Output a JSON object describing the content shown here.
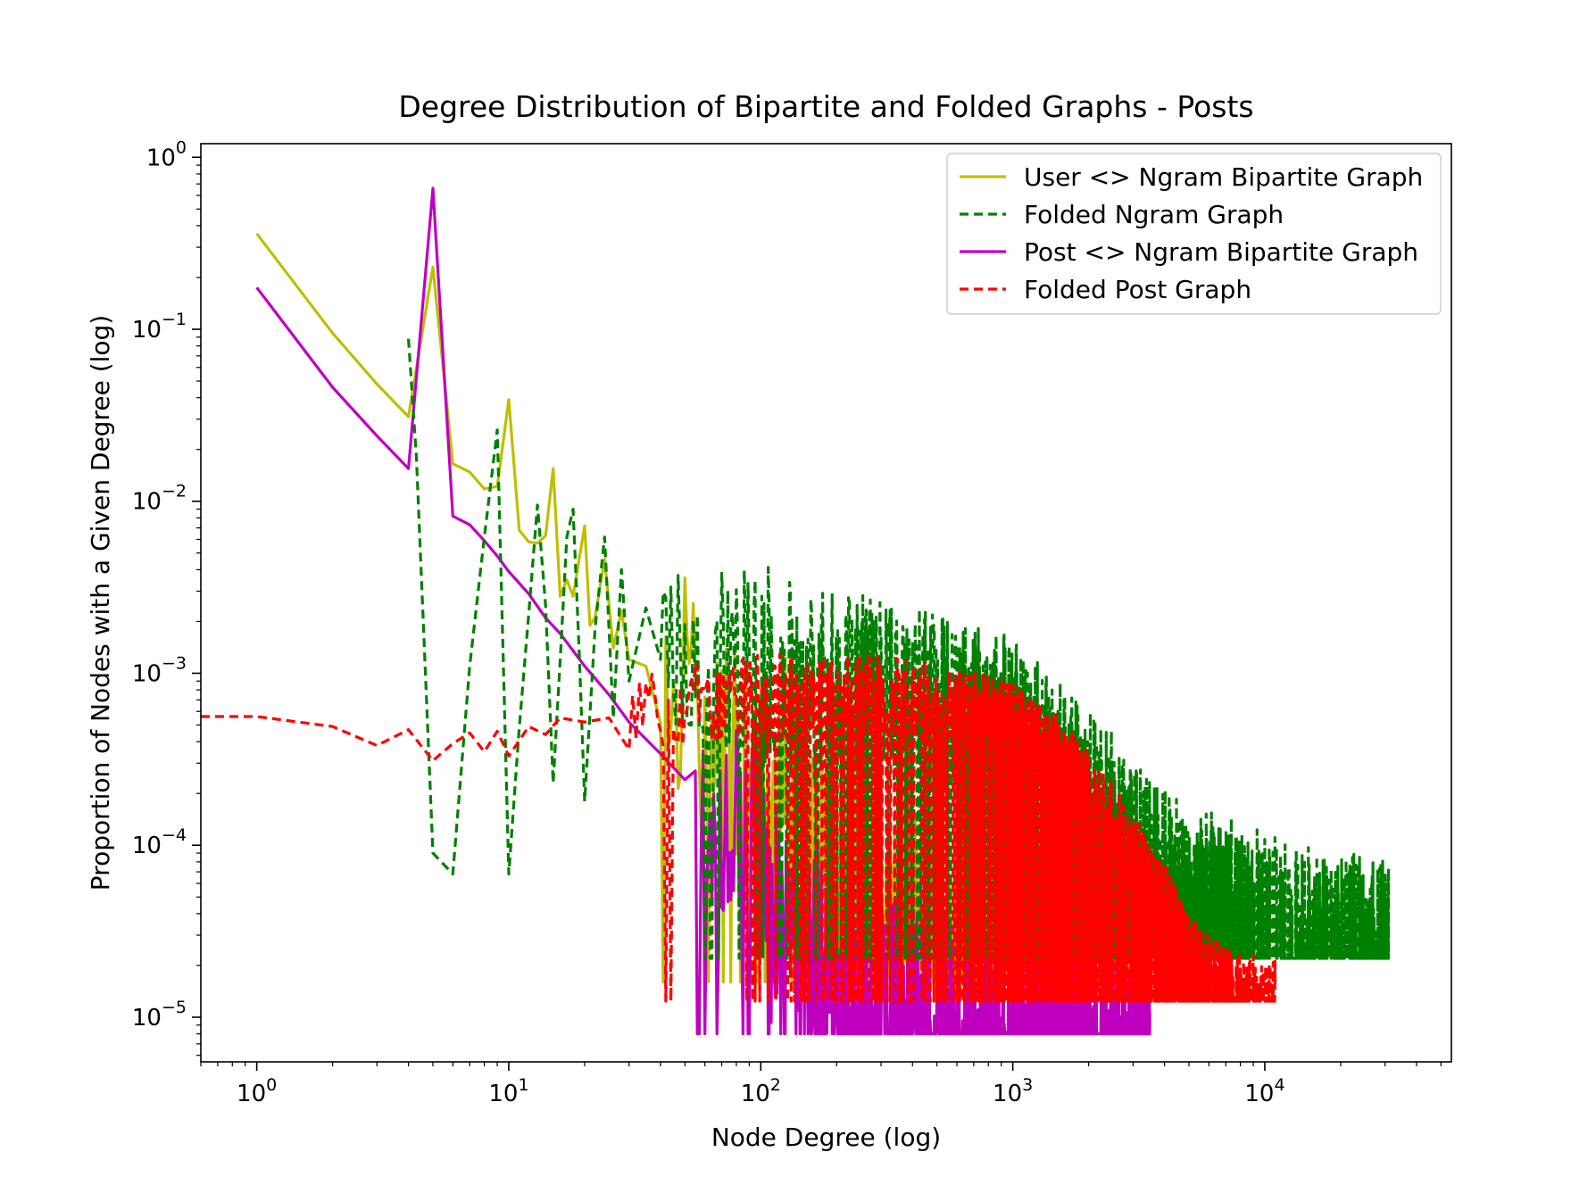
{
  "chart_data": {
    "type": "line",
    "title": "Degree Distribution of Bipartite and Folded Graphs - Posts",
    "xlabel": "Node Degree (log)",
    "ylabel": "Proportion of Nodes with a Given Degree (log)",
    "xscale": "log",
    "yscale": "log",
    "xlim": [
      0.6,
      55000
    ],
    "ylim": [
      5.5e-06,
      1.2
    ],
    "x_ticks": [
      {
        "value": 1,
        "base": "10",
        "exp": "0"
      },
      {
        "value": 10,
        "base": "10",
        "exp": "1"
      },
      {
        "value": 100,
        "base": "10",
        "exp": "2"
      },
      {
        "value": 1000,
        "base": "10",
        "exp": "3"
      },
      {
        "value": 10000,
        "base": "10",
        "exp": "4"
      }
    ],
    "y_ticks": [
      {
        "value": 1,
        "base": "10",
        "exp": "0"
      },
      {
        "value": 0.1,
        "base": "10",
        "exp": "−1"
      },
      {
        "value": 0.01,
        "base": "10",
        "exp": "−2"
      },
      {
        "value": 0.001,
        "base": "10",
        "exp": "−3"
      },
      {
        "value": 0.0001,
        "base": "10",
        "exp": "−4"
      },
      {
        "value": 1e-05,
        "base": "10",
        "exp": "−5"
      }
    ],
    "legend_position": "upper-right",
    "grid": false,
    "series": [
      {
        "name": "User <> Ngram Bipartite Graph",
        "color": "#bfbf00",
        "dash": "solid",
        "noise": {
          "start": 40,
          "end": 3500,
          "amp": 0.35,
          "decay": 1.6,
          "floor": 1.6e-05,
          "ceil_drop": 0.1,
          "seed": 11
        },
        "points": [
          [
            1,
            0.36
          ],
          [
            2,
            0.095
          ],
          [
            3,
            0.048
          ],
          [
            4,
            0.031
          ],
          [
            5,
            0.23
          ],
          [
            6,
            0.0165
          ],
          [
            7,
            0.0148
          ],
          [
            8,
            0.0118
          ],
          [
            9,
            0.0122
          ],
          [
            10,
            0.039
          ],
          [
            11,
            0.0068
          ],
          [
            12,
            0.0058
          ],
          [
            13,
            0.0057
          ],
          [
            14,
            0.0063
          ],
          [
            15,
            0.0155
          ],
          [
            16,
            0.0028
          ],
          [
            17,
            0.0035
          ],
          [
            18,
            0.0028
          ],
          [
            20,
            0.0072
          ],
          [
            21,
            0.0019
          ],
          [
            22,
            0.0021
          ],
          [
            24,
            0.0046
          ],
          [
            26,
            0.0014
          ],
          [
            28,
            0.0023
          ],
          [
            30,
            0.0012
          ],
          [
            35,
            0.0011
          ],
          [
            40,
            0.0009
          ],
          [
            50,
            0.00075
          ],
          [
            60,
            0.0006
          ],
          [
            70,
            0.00048
          ],
          [
            80,
            0.00038
          ],
          [
            100,
            0.00026
          ],
          [
            120,
            0.00018
          ],
          [
            150,
            0.000115
          ],
          [
            200,
            7.2e-05
          ],
          [
            300,
            4e-05
          ],
          [
            400,
            2.8e-05
          ],
          [
            600,
            2.1e-05
          ],
          [
            800,
            1.7e-05
          ],
          [
            1200,
            1.6e-05
          ],
          [
            3500,
            1.6e-05
          ]
        ]
      },
      {
        "name": "Folded Ngram Graph",
        "color": "#008000",
        "dash": "10,6",
        "noise": {
          "start": 40,
          "end": 31000,
          "amp": 0.5,
          "decay": 0.2,
          "floor": 2.2e-05,
          "ceil_drop": 0.05,
          "seed": 23
        },
        "points": [
          [
            4,
            0.088
          ],
          [
            4.3,
            0.018
          ],
          [
            5,
            9e-05
          ],
          [
            6,
            6.8e-05
          ],
          [
            7,
            0.0011
          ],
          [
            8,
            0.0062
          ],
          [
            9,
            0.026
          ],
          [
            10,
            6.8e-05
          ],
          [
            11,
            0.00048
          ],
          [
            12,
            0.0022
          ],
          [
            13,
            0.0095
          ],
          [
            14,
            0.0025
          ],
          [
            15,
            0.00023
          ],
          [
            16,
            0.0012
          ],
          [
            17,
            0.0062
          ],
          [
            18,
            0.009
          ],
          [
            19,
            0.0014
          ],
          [
            20,
            0.00018
          ],
          [
            22,
            0.0018
          ],
          [
            24,
            0.0062
          ],
          [
            26,
            0.00055
          ],
          [
            28,
            0.004
          ],
          [
            30,
            0.0009
          ],
          [
            35,
            0.0024
          ],
          [
            40,
            0.0017
          ],
          [
            60,
            0.0014
          ],
          [
            100,
            0.0011
          ],
          [
            200,
            0.0009
          ],
          [
            500,
            0.00068
          ],
          [
            1000,
            0.00042
          ],
          [
            2000,
            0.00018
          ],
          [
            3000,
            8.5e-05
          ],
          [
            5000,
            4.5e-05
          ],
          [
            10000,
            3.2e-05
          ],
          [
            31000,
            2.2e-05
          ]
        ]
      },
      {
        "name": "Post <> Ngram Bipartite Graph",
        "color": "#bf00bf",
        "dash": "solid",
        "noise": {
          "start": 55,
          "end": 3500,
          "amp": 0.35,
          "decay": 1.6,
          "floor": 8e-06,
          "ceil_drop": 0.1,
          "seed": 37
        },
        "points": [
          [
            1,
            0.175
          ],
          [
            2,
            0.046
          ],
          [
            3,
            0.024
          ],
          [
            4,
            0.0155
          ],
          [
            5,
            0.66
          ],
          [
            6,
            0.0082
          ],
          [
            7,
            0.0073
          ],
          [
            8,
            0.0059
          ],
          [
            9,
            0.0048
          ],
          [
            10,
            0.0039
          ],
          [
            12,
            0.0029
          ],
          [
            14,
            0.0021
          ],
          [
            16,
            0.0017
          ],
          [
            20,
            0.0011
          ],
          [
            25,
            0.00075
          ],
          [
            30,
            0.00052
          ],
          [
            40,
            0.00034
          ],
          [
            50,
            0.00024
          ],
          [
            60,
            0.00018
          ],
          [
            70,
            0.00014
          ],
          [
            80,
            0.000115
          ],
          [
            100,
            7.5e-05
          ],
          [
            120,
            4.5e-05
          ],
          [
            150,
            2.5e-05
          ],
          [
            200,
            1.5e-05
          ],
          [
            300,
            1.1e-05
          ],
          [
            500,
            8.5e-06
          ],
          [
            1000,
            8e-06
          ],
          [
            3500,
            8e-06
          ]
        ]
      },
      {
        "name": "Folded Post Graph",
        "color": "#ff0000",
        "dash": "10,6",
        "noise": {
          "start": 30,
          "end": 11000,
          "amp": 0.25,
          "decay": 0.0,
          "floor": 1.24e-05,
          "ceil_drop": 0.02,
          "seed": 53
        },
        "points": [
          [
            0.6,
            0.00056
          ],
          [
            1,
            0.00056
          ],
          [
            2,
            0.00049
          ],
          [
            3,
            0.00038
          ],
          [
            4,
            0.00047
          ],
          [
            5,
            0.00031
          ],
          [
            6,
            0.00039
          ],
          [
            7,
            0.00045
          ],
          [
            8,
            0.00035
          ],
          [
            9,
            0.00046
          ],
          [
            10,
            0.00033
          ],
          [
            12,
            0.00049
          ],
          [
            14,
            0.00044
          ],
          [
            16,
            0.00055
          ],
          [
            20,
            0.00052
          ],
          [
            25,
            0.00055
          ],
          [
            30,
            0.00058
          ],
          [
            40,
            0.00062
          ],
          [
            60,
            0.00066
          ],
          [
            100,
            0.00072
          ],
          [
            200,
            0.00074
          ],
          [
            300,
            0.00072
          ],
          [
            500,
            0.00066
          ],
          [
            800,
            0.00056
          ],
          [
            1000,
            0.00049
          ],
          [
            1500,
            0.00033
          ],
          [
            2000,
            0.0002
          ],
          [
            3000,
            9e-05
          ],
          [
            4000,
            4.5e-05
          ],
          [
            5000,
            2.2e-05
          ],
          [
            7000,
            1.4e-05
          ],
          [
            11000,
            1.24e-05
          ]
        ]
      }
    ]
  }
}
